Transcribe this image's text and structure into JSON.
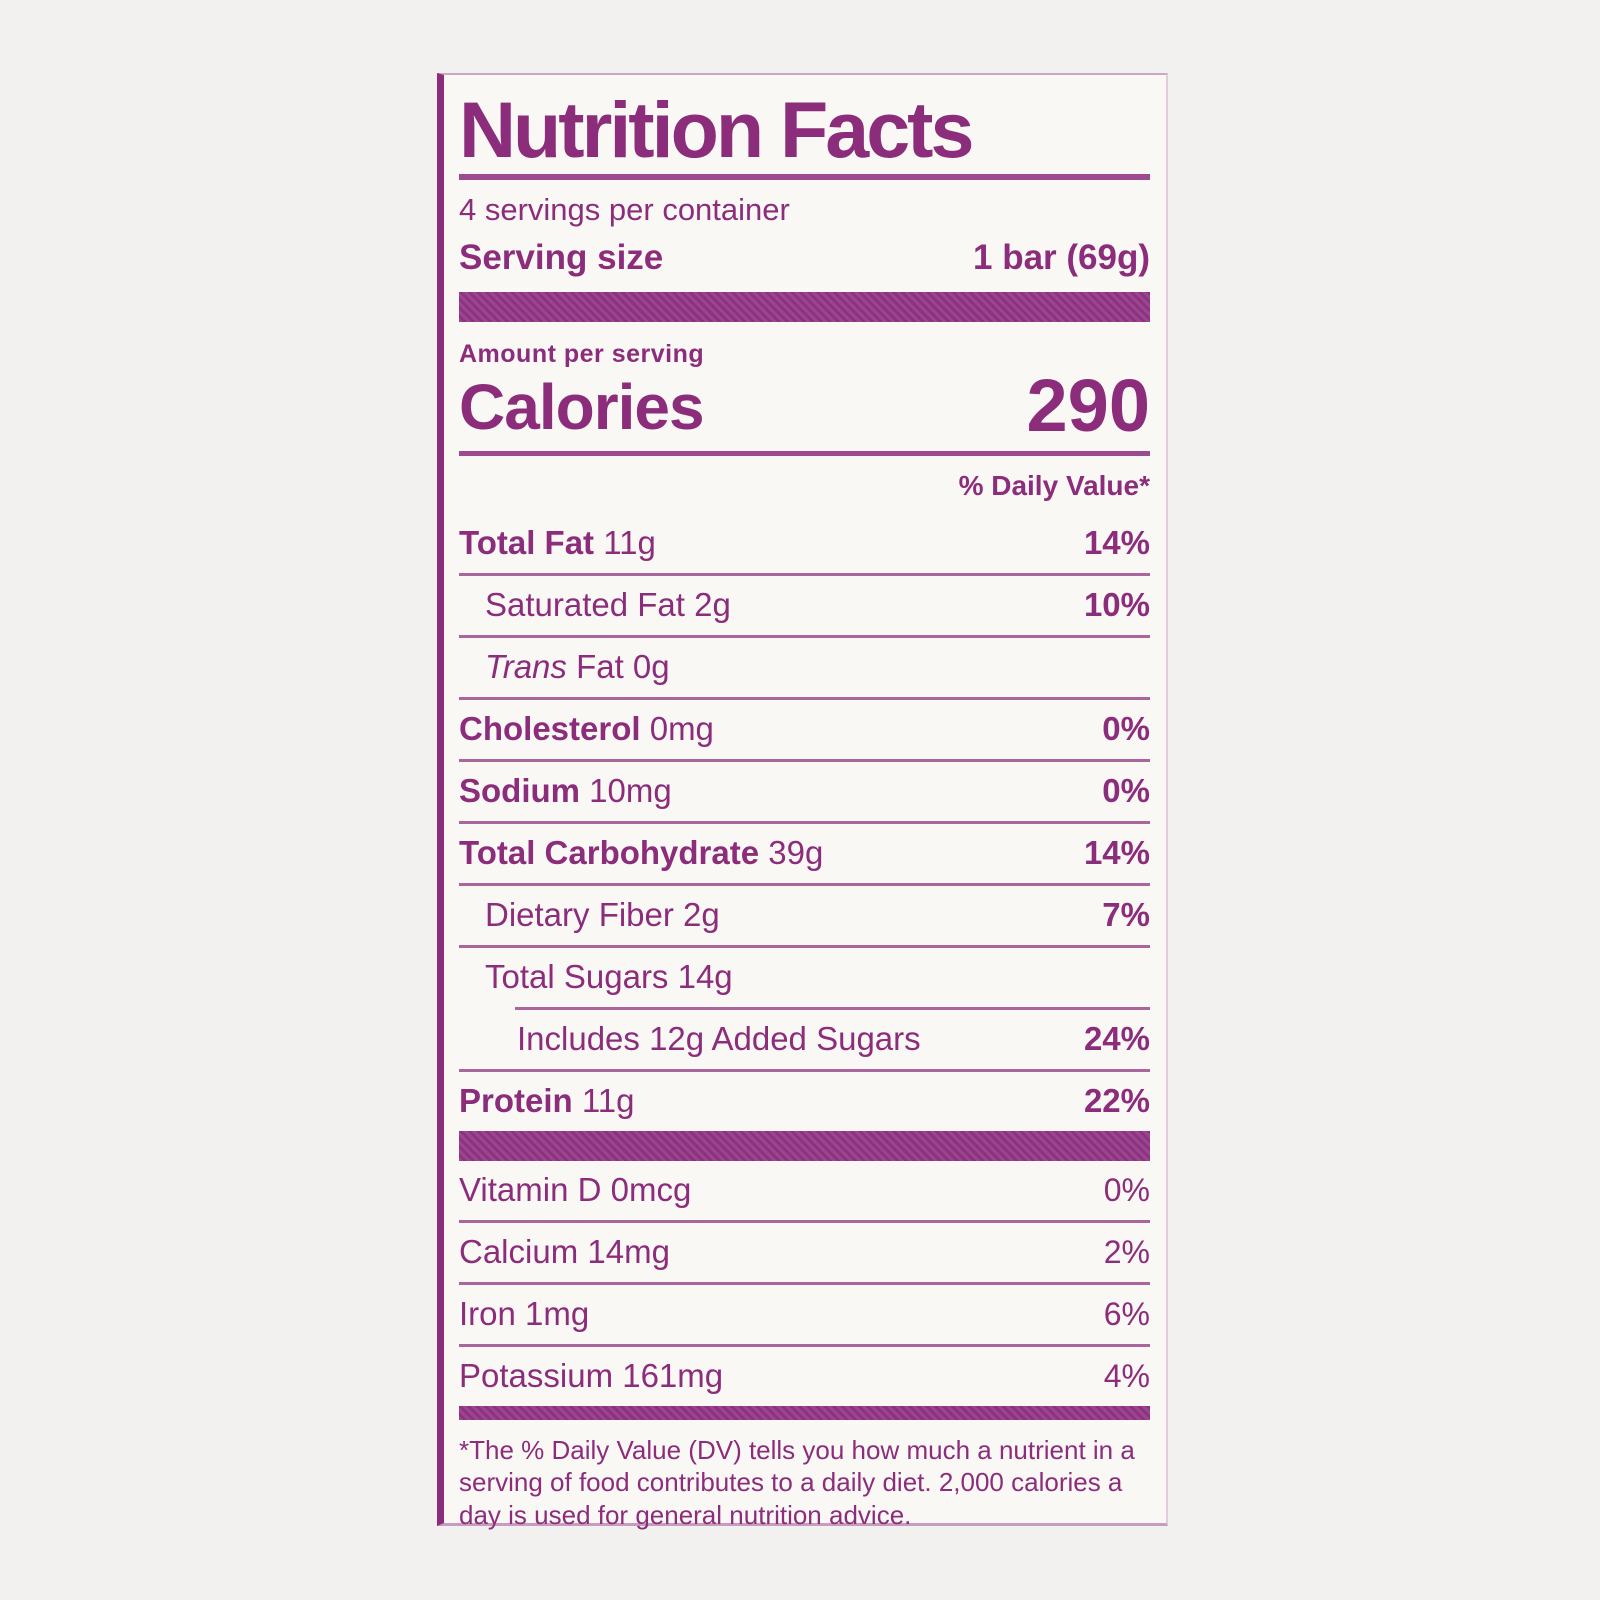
{
  "colors": {
    "accent_purple": "#8c2d7c",
    "bar_purple": "#8e3181",
    "label_background": "#faf8f5",
    "page_background": "#f2f1ef"
  },
  "label": {
    "title": "Nutrition Facts",
    "servings_per_container": "4 servings per container",
    "serving_size_label": "Serving size",
    "serving_size_value": "1 bar (69g)",
    "amount_per_serving": "Amount per serving",
    "calories_label": "Calories",
    "calories_value": "290",
    "daily_value_header": "% Daily Value*",
    "main_rows": [
      {
        "name": "Total Fat",
        "amount": "11g",
        "dv": "14%",
        "name_bold": true,
        "dv_bold": true,
        "indent": 0
      },
      {
        "name": "Saturated Fat",
        "amount": "2g",
        "dv": "10%",
        "name_bold": false,
        "dv_bold": true,
        "indent": 1
      },
      {
        "italic": "Trans",
        "name": "Fat",
        "amount": "0g",
        "dv": "",
        "name_bold": false,
        "dv_bold": false,
        "indent": 1
      },
      {
        "name": "Cholesterol",
        "amount": "0mg",
        "dv": "0%",
        "name_bold": true,
        "dv_bold": true,
        "indent": 0
      },
      {
        "name": "Sodium",
        "amount": "10mg",
        "dv": "0%",
        "name_bold": true,
        "dv_bold": true,
        "indent": 0
      },
      {
        "name": "Total Carbohydrate",
        "amount": "39g",
        "dv": "14%",
        "name_bold": true,
        "dv_bold": true,
        "indent": 0
      },
      {
        "name": "Dietary Fiber",
        "amount": "2g",
        "dv": "7%",
        "name_bold": false,
        "dv_bold": true,
        "indent": 1
      },
      {
        "name": "Total Sugars",
        "amount": "14g",
        "dv": "",
        "name_bold": false,
        "dv_bold": false,
        "indent": 1
      },
      {
        "name": "Includes 12g Added Sugars",
        "amount": "",
        "dv": "24%",
        "name_bold": false,
        "dv_bold": true,
        "indent": 2,
        "sep_indent": true
      },
      {
        "name": "Protein",
        "amount": "11g",
        "dv": "22%",
        "name_bold": true,
        "dv_bold": true,
        "indent": 0
      }
    ],
    "vitamin_rows": [
      {
        "name": "Vitamin D",
        "amount": "0mcg",
        "dv": "0%",
        "name_bold": false,
        "dv_bold": false,
        "indent": 0
      },
      {
        "name": "Calcium",
        "amount": "14mg",
        "dv": "2%",
        "name_bold": false,
        "dv_bold": false,
        "indent": 0
      },
      {
        "name": "Iron",
        "amount": "1mg",
        "dv": "6%",
        "name_bold": false,
        "dv_bold": false,
        "indent": 0
      },
      {
        "name": "Potassium",
        "amount": "161mg",
        "dv": "4%",
        "name_bold": false,
        "dv_bold": false,
        "indent": 0
      }
    ],
    "footnote": "*The % Daily Value (DV) tells you how much a nutrient in a serving of food contributes to a daily diet. 2,000 calories a day is used for general nutrition advice."
  }
}
